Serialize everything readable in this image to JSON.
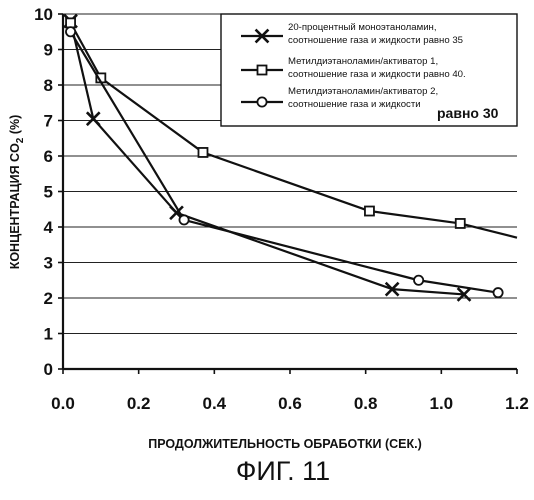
{
  "chart_data": {
    "type": "line",
    "title": "",
    "xlabel": "ПРОДОЛЖИТЕЛЬНОСТЬ ОБРАБОТКИ (СЕК.)",
    "ylabel": "КОНЦЕНТРАЦИЯ CO2 (%)",
    "ylabel_parts": {
      "prefix": "КОНЦЕНТРАЦИЯ CO",
      "subscript": "2",
      "suffix": " (%)"
    },
    "xlim": [
      0.0,
      1.2
    ],
    "ylim": [
      0,
      10
    ],
    "xticks": [
      "0.0",
      "0.2",
      "0.4",
      "0.6",
      "0.8",
      "1.0",
      "1.2"
    ],
    "yticks": [
      "0",
      "1",
      "2",
      "3",
      "4",
      "5",
      "6",
      "7",
      "8",
      "9",
      "10"
    ],
    "grid": "horizontal",
    "legend_position": "top-right",
    "series": [
      {
        "name": "20-процентный моноэтаноламин, соотношение газа и жидкости равно 35",
        "legend_lines": [
          "20-процентный моноэтаноламин,",
          "соотношение газа и жидкости равно 35"
        ],
        "marker": "x",
        "x": [
          0.02,
          0.08,
          0.3,
          0.87,
          1.06
        ],
        "y": [
          9.8,
          7.05,
          4.4,
          2.25,
          2.1
        ],
        "line_end": [
          1.06,
          2.1
        ]
      },
      {
        "name": "Метилдиэтаноламин/активатор 1, соотношение газа и жидкости равно 40.",
        "legend_lines": [
          "Метилдиэтаноламин/активатор 1,",
          "соотношение газа и жидкости равно 40."
        ],
        "marker": "square",
        "x": [
          0.02,
          0.1,
          0.37,
          0.81,
          1.05
        ],
        "y": [
          9.75,
          8.2,
          6.1,
          4.45,
          4.1
        ],
        "line_end": [
          1.2,
          3.7
        ]
      },
      {
        "name": "Метилдиэтаноламин/активатор 2, соотношение газа и жидкости равно 30",
        "legend_lines": [
          "Метилдиэтаноламин/активатор 2,",
          "соотношение газа и жидкости"
        ],
        "legend_tail": "равно 30",
        "marker": "circle",
        "x": [
          0.02,
          0.32,
          0.94,
          1.15
        ],
        "y": [
          9.5,
          4.2,
          2.5,
          2.15
        ],
        "line_end": [
          1.15,
          2.15
        ]
      }
    ]
  },
  "figure_caption": "ФИГ. 11"
}
